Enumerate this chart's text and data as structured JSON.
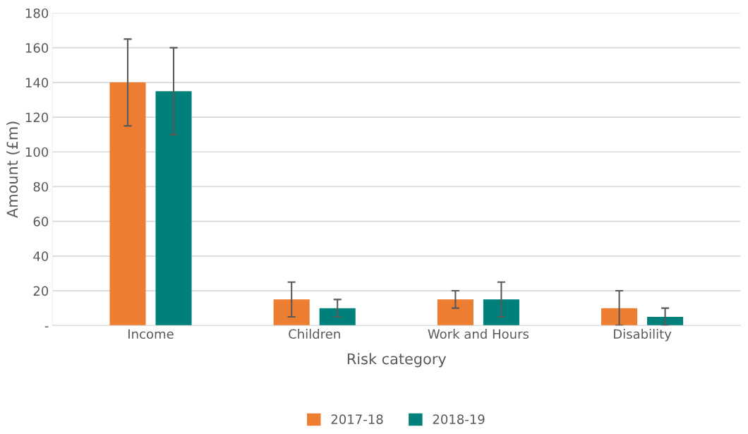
{
  "chart_data": {
    "type": "bar",
    "xlabel": "Risk category",
    "ylabel": "Amount (£m)",
    "categories": [
      "Income",
      "Children",
      "Work and Hours",
      "Disability"
    ],
    "series": [
      {
        "name": "2017-18",
        "color": "#ed7d31",
        "values": [
          140,
          15,
          15,
          10
        ],
        "errors": [
          25,
          10,
          5,
          10
        ]
      },
      {
        "name": "2018-19",
        "color": "#00807a",
        "values": [
          135,
          10,
          15,
          5
        ],
        "errors": [
          25,
          5,
          10,
          5
        ]
      }
    ],
    "ylim": [
      0,
      180
    ],
    "yticks": [
      {
        "value": 0,
        "label": "-"
      },
      20,
      40,
      60,
      80,
      100,
      120,
      140,
      160,
      180
    ],
    "grid": "y",
    "legend": "bottom"
  }
}
